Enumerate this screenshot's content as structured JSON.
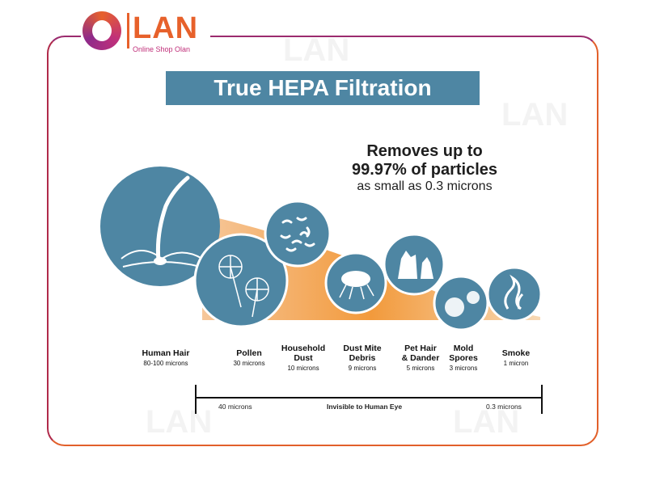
{
  "brand": {
    "name": "LAN",
    "tagline": "Online Shop Olan"
  },
  "title": "True HEPA Filtration",
  "headline": {
    "line1": "Removes up to",
    "line2": "99.97% of particles",
    "line3": "as small as 0.3 microns"
  },
  "particles": [
    {
      "name1": "Human Hair",
      "name2": "",
      "size": "80-100 microns",
      "icon": "hair-follicle-icon"
    },
    {
      "name1": "Pollen",
      "name2": "",
      "size": "30 microns",
      "icon": "dandelion-icon"
    },
    {
      "name1": "Household",
      "name2": "Dust",
      "size": "10 microns",
      "icon": "dust-icon"
    },
    {
      "name1": "Dust Mite",
      "name2": "Debris",
      "size": "9 microns",
      "icon": "dust-mite-icon"
    },
    {
      "name1": "Pet Hair",
      "name2": "& Dander",
      "size": "5 microns",
      "icon": "pet-icon"
    },
    {
      "name1": "Mold",
      "name2": "Spores",
      "size": "3 microns",
      "icon": "spores-icon"
    },
    {
      "name1": "Smoke",
      "name2": "",
      "size": "1 micron",
      "icon": "flame-smoke-icon"
    }
  ],
  "scale": {
    "left": "40 microns",
    "middle": "Invisible to Human Eye",
    "right": "0.3 microns"
  },
  "colors": {
    "circle": "#4e86a3",
    "accent": "#f29a3c",
    "frame": "#e2602a"
  }
}
